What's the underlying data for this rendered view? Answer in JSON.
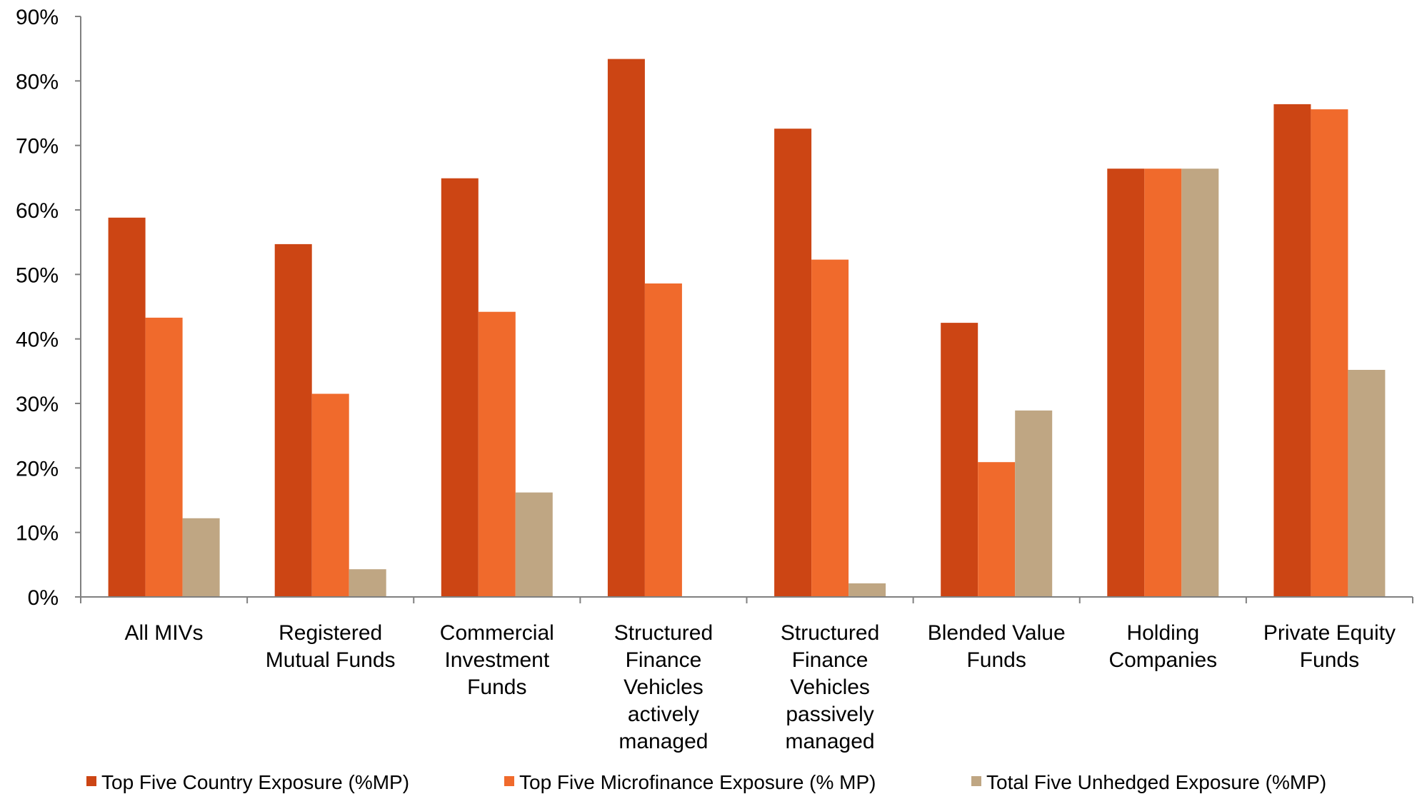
{
  "chart_data": {
    "type": "bar",
    "categories": [
      [
        "All MIVs"
      ],
      [
        "Registered",
        "Mutual Funds"
      ],
      [
        "Commercial",
        "Investment",
        "Funds"
      ],
      [
        "Structured",
        "Finance",
        "Vehicles",
        "actively",
        "managed"
      ],
      [
        "Structured",
        "Finance",
        "Vehicles",
        "passively",
        "managed"
      ],
      [
        "Blended Value",
        "Funds"
      ],
      [
        "Holding",
        "Companies"
      ],
      [
        "Private Equity",
        "Funds"
      ]
    ],
    "series": [
      {
        "name": "Top Five Country Exposure (%MP)",
        "color": "#cc4514",
        "values": [
          58.8,
          54.7,
          64.9,
          83.4,
          72.6,
          42.5,
          66.4,
          76.4
        ]
      },
      {
        "name": "Top Five Microfinance Exposure (% MP)",
        "color": "#f06a2c",
        "values": [
          43.3,
          31.5,
          44.2,
          48.6,
          52.3,
          20.9,
          66.4,
          75.6
        ]
      },
      {
        "name": "Total Five Unhedged Exposure (%MP)",
        "color": "#bfa683",
        "values": [
          12.2,
          4.3,
          16.2,
          0,
          2.1,
          28.9,
          66.4,
          35.2
        ]
      }
    ],
    "ylim": [
      0,
      90
    ],
    "yticks": [
      "0%",
      "10%",
      "20%",
      "30%",
      "40%",
      "50%",
      "60%",
      "70%",
      "80%",
      "90%"
    ],
    "grid": false,
    "legend_position": "bottom",
    "title": "",
    "xlabel": "",
    "ylabel": ""
  }
}
